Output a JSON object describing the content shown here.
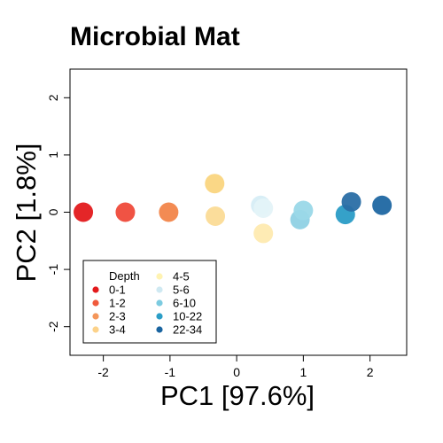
{
  "chart_data": {
    "type": "scatter",
    "title": "Microbial Mat",
    "xlabel": "PC1 [97.6%]",
    "ylabel": "PC2 [1.8%]",
    "xlim": [
      -2.5,
      2.55
    ],
    "ylim": [
      -2.5,
      2.5
    ],
    "xticks": [
      -2,
      -1,
      0,
      1,
      2
    ],
    "xtick_labels": [
      "-2",
      "-1",
      "0",
      "1",
      "2"
    ],
    "yticks": [
      -2,
      -1,
      0,
      1,
      2
    ],
    "ytick_labels": [
      "-2",
      "-1",
      "0",
      "1",
      "2"
    ],
    "grid": false,
    "legend": {
      "title": "Depth",
      "placement": "bottom-left",
      "entries": [
        {
          "label": "0-1",
          "color": "#e31a1c"
        },
        {
          "label": "1-2",
          "color": "#f05a3c"
        },
        {
          "label": "2-3",
          "color": "#f4965a"
        },
        {
          "label": "3-4",
          "color": "#fcd28a"
        },
        {
          "label": "4-5",
          "color": "#fff3b2"
        },
        {
          "label": "5-6",
          "color": "#cfe9f2"
        },
        {
          "label": "6-10",
          "color": "#7ccbe0"
        },
        {
          "label": "10-22",
          "color": "#2b9ec7"
        },
        {
          "label": "22-34",
          "color": "#1a64a0"
        }
      ]
    },
    "points": [
      {
        "x": -2.3,
        "y": 0.0,
        "color": "#e31a1c"
      },
      {
        "x": -1.67,
        "y": 0.0,
        "color": "#ef4a3a"
      },
      {
        "x": -1.02,
        "y": 0.0,
        "color": "#f2854a"
      },
      {
        "x": -0.33,
        "y": 0.5,
        "color": "#fad57f"
      },
      {
        "x": -0.32,
        "y": -0.07,
        "color": "#fbdb96"
      },
      {
        "x": 0.36,
        "y": 0.12,
        "color": "#d6edf5"
      },
      {
        "x": 0.4,
        "y": 0.07,
        "color": "#e4f3f8"
      },
      {
        "x": 0.4,
        "y": -0.37,
        "color": "#feeab0"
      },
      {
        "x": 0.95,
        "y": -0.13,
        "color": "#8fd1e4"
      },
      {
        "x": 1.0,
        "y": 0.03,
        "color": "#9ad8e8"
      },
      {
        "x": 1.63,
        "y": -0.04,
        "color": "#2a9cc6"
      },
      {
        "x": 1.72,
        "y": 0.18,
        "color": "#2a6ea5"
      },
      {
        "x": 2.18,
        "y": 0.12,
        "color": "#1f67a2"
      }
    ]
  }
}
